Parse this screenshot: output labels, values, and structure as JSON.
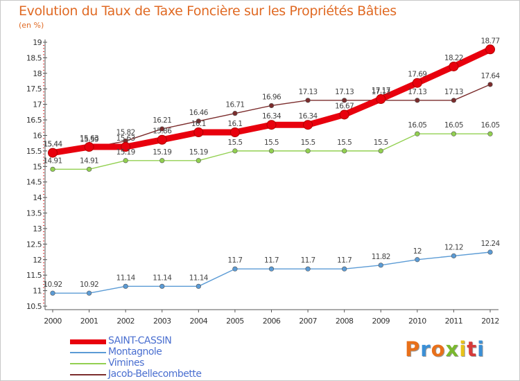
{
  "header": {
    "title": "Evolution du Taux de Taxe Foncière sur les Propriétés Bâties",
    "unit": "(en %)"
  },
  "logo": {
    "text": "Proxiti",
    "colors": [
      "#e8701a",
      "#3a8fd6",
      "#e8701a",
      "#7ab82e",
      "#e8c21a",
      "#d63a3a",
      "#3a8fd6"
    ]
  },
  "chart_data": {
    "type": "line",
    "title": "Evolution du Taux de Taxe Foncière sur les Propriétés Bâties",
    "ylabel": "(en %)",
    "xlabel": "",
    "x": [
      "2000",
      "2001",
      "2002",
      "2003",
      "2004",
      "2005",
      "2006",
      "2007",
      "2008",
      "2009",
      "2010",
      "2011",
      "2012"
    ],
    "ylim": [
      10.5,
      19
    ],
    "yticks": [
      10.5,
      11,
      11.5,
      12,
      12.5,
      13,
      13.5,
      14,
      14.5,
      15,
      15.5,
      16,
      16.5,
      17,
      17.5,
      18,
      18.5,
      19
    ],
    "grid": false,
    "legend": "bottom-left",
    "series": [
      {
        "name": "SAINT-CASSIN",
        "color": "#e8000d",
        "values": [
          15.44,
          15.63,
          15.63,
          15.86,
          16.1,
          16.1,
          16.34,
          16.34,
          16.67,
          17.17,
          17.69,
          18.22,
          18.77
        ],
        "labels": [
          "15.44",
          "15.63",
          "15.63",
          "15.86",
          "16.1",
          "16.1",
          "16.34",
          "16.34",
          "16.67",
          "17.17",
          "17.69",
          "18.22",
          "18.77"
        ]
      },
      {
        "name": "Montagnole",
        "color": "#5b9bd5",
        "values": [
          10.92,
          10.92,
          11.14,
          11.14,
          11.14,
          11.7,
          11.7,
          11.7,
          11.7,
          11.82,
          12,
          12.12,
          12.24
        ],
        "labels": [
          "10.92",
          "10.92",
          "11.14",
          "11.14",
          "11.14",
          "11.7",
          "11.7",
          "11.7",
          "11.7",
          "11.82",
          "12",
          "12.12",
          "12.24"
        ]
      },
      {
        "name": "Vimines",
        "color": "#92d050",
        "values": [
          14.91,
          14.91,
          15.19,
          15.19,
          15.19,
          15.5,
          15.5,
          15.5,
          15.5,
          15.5,
          16.05,
          16.05,
          16.05
        ],
        "labels": [
          "14.91",
          "14.91",
          "15.19",
          "15.19",
          "15.19",
          "15.5",
          "15.5",
          "15.5",
          "15.5",
          "15.5",
          "16.05",
          "16.05",
          "16.05"
        ]
      },
      {
        "name": "Jacob-Bellecombette",
        "color": "#7b2c2c",
        "values": [
          15.44,
          15.59,
          15.82,
          16.21,
          16.46,
          16.71,
          16.96,
          17.13,
          17.13,
          17.13,
          17.13,
          17.13,
          17.64
        ],
        "labels": [
          "15.44",
          "15.59",
          "15.82",
          "16.21",
          "16.46",
          "16.71",
          "16.96",
          "17.13",
          "17.13",
          "17.13",
          "17.13",
          "17.13",
          "17.64"
        ]
      }
    ]
  }
}
